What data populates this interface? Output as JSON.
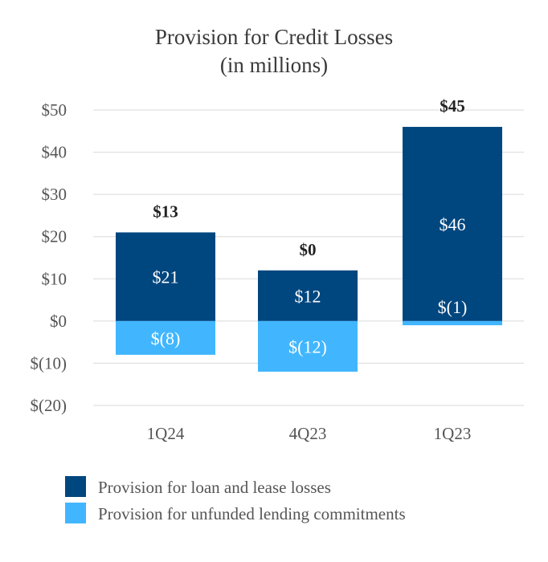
{
  "chart_data": {
    "type": "stacked-bar",
    "title_line1": "Provision for Credit Losses",
    "title_line2": "(in millions)",
    "categories": [
      "1Q24",
      "4Q23",
      "1Q23"
    ],
    "series": [
      {
        "name": "Provision for loan and lease losses",
        "color": "#00467f",
        "values": [
          21,
          12,
          46
        ],
        "labels": [
          "$21",
          "$12",
          "$46"
        ]
      },
      {
        "name": "Provision for unfunded lending commitments",
        "color": "#41b6ff",
        "values": [
          -8,
          -12,
          -1
        ],
        "labels": [
          "$(8)",
          "$(12)",
          "$(1)"
        ]
      }
    ],
    "totals": [
      "$13",
      "$0",
      "$45"
    ],
    "ylim": [
      -20,
      50
    ],
    "yticks": [
      50,
      40,
      30,
      20,
      10,
      0,
      -10,
      -20
    ],
    "ytick_labels": [
      "$50",
      "$40",
      "$30",
      "$20",
      "$10",
      "$0",
      "$(10)",
      "$(20)"
    ],
    "grid": true,
    "legend_position": "bottom-left"
  }
}
